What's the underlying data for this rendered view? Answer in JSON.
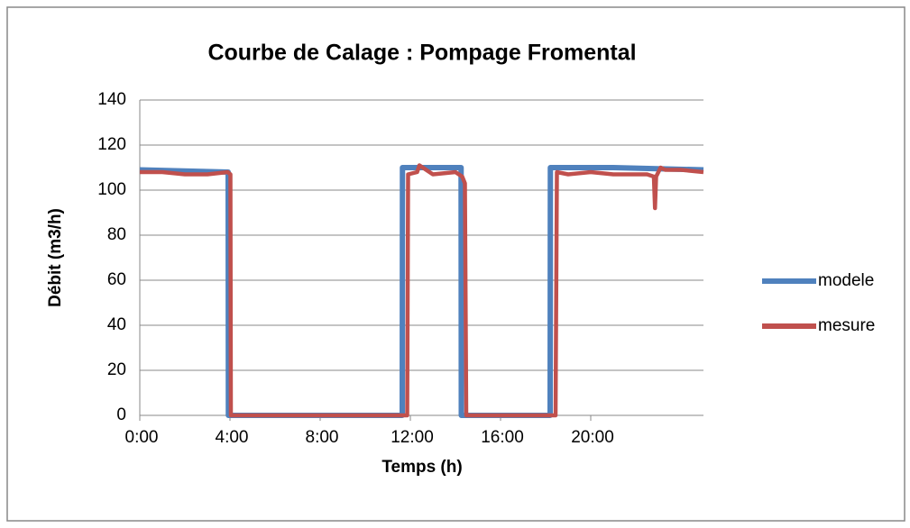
{
  "chart_data": {
    "type": "line",
    "title": "Courbe de Calage : Pompage Fromental",
    "xlabel": "Temps (h)",
    "ylabel": "Débit (m3/h)",
    "xlim": [
      0,
      25
    ],
    "xticks": [
      {
        "value": 0,
        "label": "0:00"
      },
      {
        "value": 4,
        "label": "4:00"
      },
      {
        "value": 8,
        "label": "8:00"
      },
      {
        "value": 12,
        "label": "12:00"
      },
      {
        "value": 16,
        "label": "16:00"
      },
      {
        "value": 20,
        "label": "20:00"
      }
    ],
    "ylim": [
      0,
      140
    ],
    "yticks": [
      0,
      20,
      40,
      60,
      80,
      100,
      120,
      140
    ],
    "grid": true,
    "legend": "right",
    "series": [
      {
        "name": "modele",
        "color": "#4f81bd",
        "x": [
          0,
          3.92,
          3.93,
          11.64,
          11.65,
          14.25,
          14.26,
          18.2,
          18.21,
          21,
          25
        ],
        "values": [
          109,
          108,
          0,
          0,
          110,
          110,
          0,
          0,
          110,
          110,
          109
        ]
      },
      {
        "name": "mesure",
        "color": "#c0504d",
        "x": [
          0,
          1,
          2,
          3,
          3.9,
          4.02,
          4.04,
          11.86,
          11.9,
          12.3,
          12.4,
          13,
          14,
          14.3,
          14.42,
          14.48,
          18.44,
          18.5,
          19,
          20,
          21,
          22.5,
          22.8,
          22.85,
          22.9,
          23.1,
          23.3,
          24,
          25
        ],
        "values": [
          108,
          108,
          107,
          107,
          108,
          107,
          0,
          0,
          107,
          108,
          111,
          107,
          108,
          106,
          103,
          0,
          0,
          108,
          107,
          108,
          107,
          107,
          106,
          92,
          106,
          110,
          109,
          109,
          108
        ]
      }
    ]
  }
}
